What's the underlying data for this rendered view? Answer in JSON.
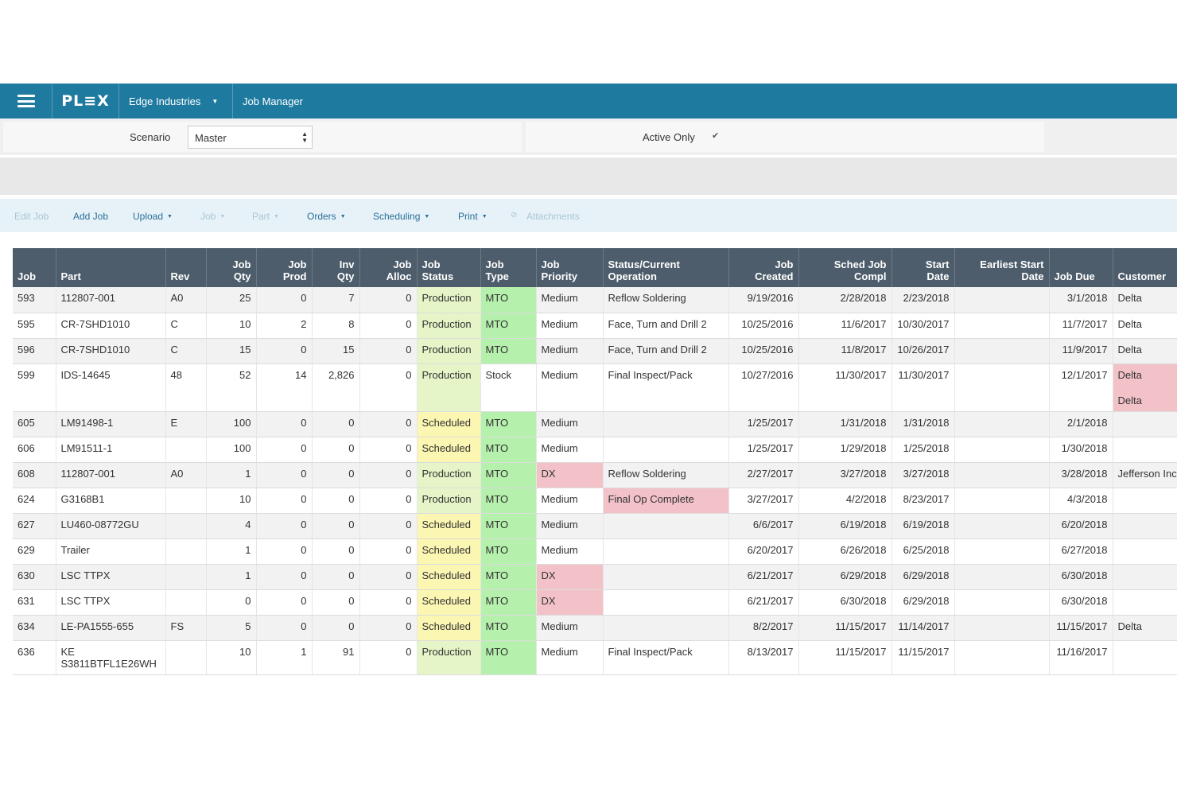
{
  "topbar": {
    "logo": "PL≡X",
    "company": "Edge Industries",
    "app_title": "Job Manager"
  },
  "filter": {
    "scenario_label": "Scenario",
    "scenario_value": "Master",
    "active_only_label": "Active Only",
    "active_only_checked": true
  },
  "actions": [
    {
      "label": "Edit Job",
      "enabled": false,
      "dropdown": false
    },
    {
      "label": "Add Job",
      "enabled": true,
      "dropdown": false
    },
    {
      "label": "Upload",
      "enabled": true,
      "dropdown": true
    },
    {
      "label": "Job",
      "enabled": false,
      "dropdown": true
    },
    {
      "label": "Part",
      "enabled": false,
      "dropdown": true
    },
    {
      "label": "Orders",
      "enabled": true,
      "dropdown": true
    },
    {
      "label": "Scheduling",
      "enabled": true,
      "dropdown": true
    },
    {
      "label": "Print",
      "enabled": true,
      "dropdown": true
    },
    {
      "label": "Attachments",
      "enabled": false,
      "dropdown": false
    }
  ],
  "table": {
    "columns": [
      {
        "line1": "",
        "line2": "Job"
      },
      {
        "line1": "",
        "line2": "Part"
      },
      {
        "line1": "",
        "line2": "Rev"
      },
      {
        "line1": "Job",
        "line2": "Qty"
      },
      {
        "line1": "Job",
        "line2": "Prod"
      },
      {
        "line1": "Inv",
        "line2": "Qty"
      },
      {
        "line1": "Job",
        "line2": "Alloc"
      },
      {
        "line1": "Job",
        "line2": "Status"
      },
      {
        "line1": "Job",
        "line2": "Type"
      },
      {
        "line1": "Job",
        "line2": "Priority"
      },
      {
        "line1": "Status/Current",
        "line2": "Operation"
      },
      {
        "line1": "Job",
        "line2": "Created"
      },
      {
        "line1": "Sched Job",
        "line2": "Compl"
      },
      {
        "line1": "Start",
        "line2": "Date"
      },
      {
        "line1": "Earliest Start",
        "line2": "Date"
      },
      {
        "line1": "",
        "line2": "Job Due"
      },
      {
        "line1": "",
        "line2": "Customer"
      }
    ],
    "rows": [
      {
        "job": "593",
        "part": "112807-001",
        "rev": "A0",
        "qty": "25",
        "prod": "0",
        "inv": "7",
        "alloc": "0",
        "status": "Production",
        "type": "MTO",
        "priority": "Medium",
        "operation": "Reflow Soldering",
        "created": "9/19/2016",
        "compl": "2/28/2018",
        "start": "2/23/2018",
        "earliest": "",
        "due": "3/1/2018",
        "customer": [
          "Delta"
        ],
        "priority_flag": false,
        "op_flag": false,
        "cust_flag": false
      },
      {
        "job": "595",
        "part": "CR-7SHD1010",
        "rev": "C",
        "qty": "10",
        "prod": "2",
        "inv": "8",
        "alloc": "0",
        "status": "Production",
        "type": "MTO",
        "priority": "Medium",
        "operation": "Face, Turn and Drill 2",
        "created": "10/25/2016",
        "compl": "11/6/2017",
        "start": "10/30/2017",
        "earliest": "",
        "due": "11/7/2017",
        "customer": [
          "Delta"
        ],
        "priority_flag": false,
        "op_flag": false,
        "cust_flag": false
      },
      {
        "job": "596",
        "part": "CR-7SHD1010",
        "rev": "C",
        "qty": "15",
        "prod": "0",
        "inv": "15",
        "alloc": "0",
        "status": "Production",
        "type": "MTO",
        "priority": "Medium",
        "operation": "Face, Turn and Drill 2",
        "created": "10/25/2016",
        "compl": "11/8/2017",
        "start": "10/26/2017",
        "earliest": "",
        "due": "11/9/2017",
        "customer": [
          "Delta"
        ],
        "priority_flag": false,
        "op_flag": false,
        "cust_flag": false
      },
      {
        "job": "599",
        "part": "IDS-14645",
        "rev": "48",
        "qty": "52",
        "prod": "14",
        "inv": "2,826",
        "alloc": "0",
        "status": "Production",
        "type": "Stock",
        "priority": "Medium",
        "operation": "Final Inspect/Pack",
        "created": "10/27/2016",
        "compl": "11/30/2017",
        "start": "11/30/2017",
        "earliest": "",
        "due": "12/1/2017",
        "customer": [
          "Delta",
          "Delta"
        ],
        "priority_flag": false,
        "op_flag": false,
        "cust_flag": true
      },
      {
        "job": "605",
        "part": "LM91498-1",
        "rev": "E",
        "qty": "100",
        "prod": "0",
        "inv": "0",
        "alloc": "0",
        "status": "Scheduled",
        "type": "MTO",
        "priority": "Medium",
        "operation": "",
        "created": "1/25/2017",
        "compl": "1/31/2018",
        "start": "1/31/2018",
        "earliest": "",
        "due": "2/1/2018",
        "customer": [
          ""
        ],
        "priority_flag": false,
        "op_flag": false,
        "cust_flag": false
      },
      {
        "job": "606",
        "part": "LM91511-1",
        "rev": "",
        "qty": "100",
        "prod": "0",
        "inv": "0",
        "alloc": "0",
        "status": "Scheduled",
        "type": "MTO",
        "priority": "Medium",
        "operation": "",
        "created": "1/25/2017",
        "compl": "1/29/2018",
        "start": "1/25/2018",
        "earliest": "",
        "due": "1/30/2018",
        "customer": [
          ""
        ],
        "priority_flag": false,
        "op_flag": false,
        "cust_flag": false
      },
      {
        "job": "608",
        "part": "112807-001",
        "rev": "A0",
        "qty": "1",
        "prod": "0",
        "inv": "0",
        "alloc": "0",
        "status": "Production",
        "type": "MTO",
        "priority": "DX",
        "operation": "Reflow Soldering",
        "created": "2/27/2017",
        "compl": "3/27/2018",
        "start": "3/27/2018",
        "earliest": "",
        "due": "3/28/2018",
        "customer": [
          "Jefferson Inc"
        ],
        "priority_flag": true,
        "op_flag": false,
        "cust_flag": false
      },
      {
        "job": "624",
        "part": "G3168B1",
        "rev": "",
        "qty": "10",
        "prod": "0",
        "inv": "0",
        "alloc": "0",
        "status": "Production",
        "type": "MTO",
        "priority": "Medium",
        "operation": "Final Op Complete",
        "created": "3/27/2017",
        "compl": "4/2/2018",
        "start": "8/23/2017",
        "earliest": "",
        "due": "4/3/2018",
        "customer": [
          ""
        ],
        "priority_flag": false,
        "op_flag": true,
        "cust_flag": false
      },
      {
        "job": "627",
        "part": "LU460-08772GU",
        "rev": "",
        "qty": "4",
        "prod": "0",
        "inv": "0",
        "alloc": "0",
        "status": "Scheduled",
        "type": "MTO",
        "priority": "Medium",
        "operation": "",
        "created": "6/6/2017",
        "compl": "6/19/2018",
        "start": "6/19/2018",
        "earliest": "",
        "due": "6/20/2018",
        "customer": [
          ""
        ],
        "priority_flag": false,
        "op_flag": false,
        "cust_flag": false
      },
      {
        "job": "629",
        "part": "Trailer",
        "rev": "",
        "qty": "1",
        "prod": "0",
        "inv": "0",
        "alloc": "0",
        "status": "Scheduled",
        "type": "MTO",
        "priority": "Medium",
        "operation": "",
        "created": "6/20/2017",
        "compl": "6/26/2018",
        "start": "6/25/2018",
        "earliest": "",
        "due": "6/27/2018",
        "customer": [
          ""
        ],
        "priority_flag": false,
        "op_flag": false,
        "cust_flag": false
      },
      {
        "job": "630",
        "part": "LSC TTPX",
        "rev": "",
        "qty": "1",
        "prod": "0",
        "inv": "0",
        "alloc": "0",
        "status": "Scheduled",
        "type": "MTO",
        "priority": "DX",
        "operation": "",
        "created": "6/21/2017",
        "compl": "6/29/2018",
        "start": "6/29/2018",
        "earliest": "",
        "due": "6/30/2018",
        "customer": [
          ""
        ],
        "priority_flag": true,
        "op_flag": false,
        "cust_flag": false
      },
      {
        "job": "631",
        "part": "LSC TTPX",
        "rev": "",
        "qty": "0",
        "prod": "0",
        "inv": "0",
        "alloc": "0",
        "status": "Scheduled",
        "type": "MTO",
        "priority": "DX",
        "operation": "",
        "created": "6/21/2017",
        "compl": "6/30/2018",
        "start": "6/29/2018",
        "earliest": "",
        "due": "6/30/2018",
        "customer": [
          ""
        ],
        "priority_flag": true,
        "op_flag": false,
        "cust_flag": false
      },
      {
        "job": "634",
        "part": "LE-PA1555-655",
        "rev": "FS",
        "qty": "5",
        "prod": "0",
        "inv": "0",
        "alloc": "0",
        "status": "Scheduled",
        "type": "MTO",
        "priority": "Medium",
        "operation": "",
        "created": "8/2/2017",
        "compl": "11/15/2017",
        "start": "11/14/2017",
        "earliest": "",
        "due": "11/15/2017",
        "customer": [
          "Delta"
        ],
        "priority_flag": false,
        "op_flag": false,
        "cust_flag": false
      },
      {
        "job": "636",
        "part": "KE S3811BTFL1E26WH",
        "rev": "",
        "qty": "10",
        "prod": "1",
        "inv": "91",
        "alloc": "0",
        "status": "Production",
        "type": "MTO",
        "priority": "Medium",
        "operation": "Final Inspect/Pack",
        "created": "8/13/2017",
        "compl": "11/15/2017",
        "start": "11/15/2017",
        "earliest": "",
        "due": "11/16/2017",
        "customer": [
          ""
        ],
        "priority_flag": false,
        "op_flag": false,
        "cust_flag": false
      }
    ]
  }
}
